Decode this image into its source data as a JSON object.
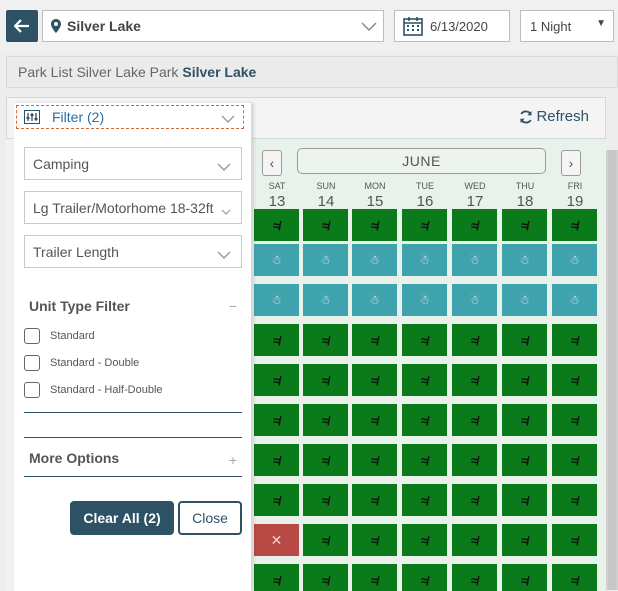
{
  "header": {
    "park": "Silver Lake",
    "date": "6/13/2020",
    "nights": "1 Night"
  },
  "breadcrumb": {
    "prefix": "Park List",
    "park_name": "Silver Lake Park",
    "current": "Silver Lake"
  },
  "toolbar": {
    "refresh_label": "Refresh"
  },
  "calendar": {
    "month": "JUNE",
    "days": [
      {
        "name": "SAT",
        "date": "13"
      },
      {
        "name": "SUN",
        "date": "14"
      },
      {
        "name": "MON",
        "date": "15"
      },
      {
        "name": "TUE",
        "date": "16"
      },
      {
        "name": "WED",
        "date": "17"
      },
      {
        "name": "THU",
        "date": "18"
      },
      {
        "name": "FRI",
        "date": "19"
      }
    ],
    "rows": [
      [
        "green",
        "green",
        "green",
        "green",
        "green",
        "green",
        "green"
      ],
      [
        "teal",
        "teal",
        "teal",
        "teal",
        "teal",
        "teal",
        "teal"
      ],
      [
        "teal",
        "teal",
        "teal",
        "teal",
        "teal",
        "teal",
        "teal"
      ],
      [
        "green",
        "green",
        "green",
        "green",
        "green",
        "green",
        "green"
      ],
      [
        "green",
        "green",
        "green",
        "green",
        "green",
        "green",
        "green"
      ],
      [
        "green",
        "green",
        "green",
        "green",
        "green",
        "green",
        "green"
      ],
      [
        "green",
        "green",
        "green",
        "green",
        "green",
        "green",
        "green"
      ],
      [
        "green",
        "green",
        "green",
        "green",
        "green",
        "green",
        "green"
      ],
      [
        "red",
        "green",
        "green",
        "green",
        "green",
        "green",
        "green"
      ],
      [
        "green",
        "green",
        "green",
        "green",
        "green",
        "green",
        "green"
      ]
    ],
    "status_glyphs": {
      "green": "≉",
      "teal": "☃",
      "red": "✕"
    },
    "colors": {
      "available": "#0a7a1a",
      "walkup": "#3fa3ad",
      "unavailable": "#b74a45"
    }
  },
  "filter": {
    "title": "Filter (2)",
    "category": "Camping",
    "equipment": "Lg Trailer/Motorhome 18-32ft",
    "trailer_length": "Trailer Length",
    "unit_type_title": "Unit Type Filter",
    "unit_type_sign": "−",
    "unit_types": [
      "Standard",
      "Standard - Double",
      "Standard - Half-Double"
    ],
    "more_options": "More Options",
    "more_sign": "+",
    "clear_all": "Clear All (2)",
    "close": "Close"
  },
  "colors": {
    "brand": "#2d5266",
    "link": "#2d6fa3",
    "focus": "#d4682e"
  }
}
